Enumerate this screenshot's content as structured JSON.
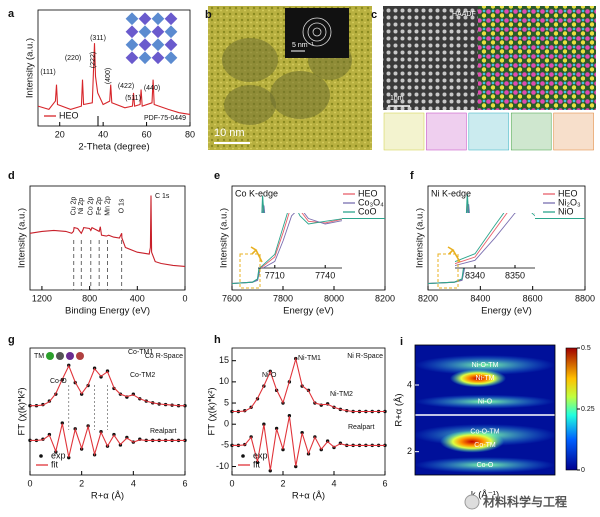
{
  "chart_data": [
    {
      "type": "line",
      "label": "a",
      "xlabel": "2-Theta (degree)",
      "ylabel": "Intensity (a.u.)",
      "xlim": [
        10,
        80
      ],
      "xticks": [
        20,
        40,
        60,
        80
      ],
      "ylim": [
        30,
        100
      ],
      "legend": "lower left",
      "reference": "PDF-75-0449",
      "peaks": [
        "(111)",
        "(220)",
        "(311)",
        "(222)",
        "(400)",
        "(422)",
        "(511)",
        "(440)"
      ],
      "x": [
        10,
        15,
        18,
        18.5,
        19,
        25,
        30,
        30.5,
        31,
        35,
        35.5,
        36,
        36.5,
        37.5,
        40,
        43,
        43.5,
        44,
        50,
        53.5,
        54,
        54.5,
        57,
        57.5,
        58,
        62.5,
        63,
        63.5,
        70,
        75,
        80
      ],
      "series": [
        {
          "name": "HEO",
          "color": "#d7262b",
          "values": [
            42,
            40,
            45,
            55,
            43,
            40,
            42,
            58,
            43,
            44,
            62,
            80,
            60,
            50,
            43,
            45,
            55,
            44,
            41,
            42,
            50,
            42,
            43,
            52,
            42,
            44,
            58,
            43,
            40,
            38,
            37
          ]
        }
      ]
    },
    {
      "type": "image",
      "label": "b",
      "scalebar": "10 nm",
      "inset_scalebar": "5 nm⁻¹"
    },
    {
      "type": "image",
      "label": "c",
      "title": "HAADF",
      "scalebar": "1nm"
    },
    {
      "type": "line",
      "label": "d",
      "xlabel": "Binding Energy (eV)",
      "ylabel": "Intensity (a.u.)",
      "xlim": [
        1300,
        0
      ],
      "xticks": [
        1200,
        800,
        400,
        0
      ],
      "ylim": [
        0,
        110
      ],
      "peaks": [
        "Cu 2p",
        "Ni 2p",
        "Co 2p",
        "Fe 2p",
        "Mn 2p",
        "O 1s",
        "C 1s"
      ],
      "x": [
        1300,
        1200,
        1100,
        1000,
        950,
        935,
        930,
        900,
        870,
        855,
        850,
        800,
        790,
        780,
        750,
        720,
        710,
        700,
        660,
        640,
        600,
        550,
        531,
        529,
        500,
        400,
        300,
        290,
        285,
        280,
        250,
        200,
        100,
        0
      ],
      "series": [
        {
          "color": "#c8202a",
          "values": [
            60,
            62,
            63,
            62,
            60,
            62,
            66,
            65,
            60,
            64,
            66,
            65,
            63,
            66,
            64,
            62,
            67,
            58,
            57,
            58,
            56,
            55,
            60,
            55,
            45,
            40,
            38,
            45,
            100,
            40,
            30,
            28,
            26,
            25
          ]
        }
      ]
    },
    {
      "type": "line",
      "label": "e",
      "edge": "Co K-edge",
      "xlabel": "Energy (eV)",
      "ylabel": "Intensity (a.u.)",
      "xlim": [
        7600,
        8200
      ],
      "xticks": [
        7600,
        7800,
        8000,
        8200
      ],
      "ylim": [
        -0.1,
        1.5
      ],
      "legend": "upper right",
      "inset": {
        "xlim": [
          7700,
          7750
        ],
        "ylim": [
          0.1,
          1.1
        ],
        "xticks": [
          7710,
          7740
        ]
      },
      "x": [
        7600,
        7680,
        7700,
        7710,
        7715,
        7720,
        7725,
        7730,
        7740,
        7760,
        7780,
        7800,
        7850,
        7900,
        8000,
        8100,
        8200
      ],
      "series": [
        {
          "name": "HEO",
          "color": "#e8606b",
          "values": [
            0,
            0.02,
            0.06,
            0.3,
            0.75,
            1.25,
            1.15,
            0.95,
            0.92,
            1.05,
            1.0,
            0.97,
            1.02,
            1.0,
            1.0,
            1.0,
            1.0
          ]
        },
        {
          "name": "Co₃O₄",
          "color": "#7a6fb0",
          "values": [
            0,
            0.02,
            0.05,
            0.22,
            0.6,
            1.05,
            1.2,
            1.0,
            0.9,
            1.02,
            1.03,
            0.98,
            1.01,
            1.0,
            1.0,
            1.0,
            1.0
          ]
        },
        {
          "name": "CoO",
          "color": "#2ca58d",
          "values": [
            0,
            0.02,
            0.07,
            0.35,
            0.85,
            1.35,
            1.05,
            0.9,
            0.95,
            1.04,
            0.98,
            0.98,
            1.0,
            1.0,
            1.0,
            1.0,
            1.0
          ]
        }
      ]
    },
    {
      "type": "line",
      "label": "f",
      "edge": "Ni K-edge",
      "xlabel": "Energy (eV)",
      "ylabel": "Intensity (a.u.)",
      "xlim": [
        8200,
        8800
      ],
      "xticks": [
        8200,
        8400,
        8600,
        8800
      ],
      "ylim": [
        -0.1,
        1.5
      ],
      "legend": "upper right",
      "inset": {
        "xlim": [
          8335,
          8355
        ],
        "ylim": [
          0.1,
          1.1
        ],
        "xticks": [
          8340,
          8350
        ]
      },
      "x": [
        8200,
        8300,
        8330,
        8340,
        8345,
        8350,
        8355,
        8360,
        8370,
        8390,
        8420,
        8450,
        8500,
        8550,
        8650,
        8750,
        8800
      ],
      "series": [
        {
          "name": "HEO",
          "color": "#e8606b",
          "values": [
            0,
            0.02,
            0.06,
            0.3,
            0.8,
            1.3,
            1.1,
            0.95,
            0.92,
            1.05,
            1.0,
            0.97,
            1.02,
            1.0,
            1.0,
            1.0,
            1.0
          ]
        },
        {
          "name": "Ni₂O₃",
          "color": "#7a6fb0",
          "values": [
            0,
            0.02,
            0.05,
            0.24,
            0.65,
            1.1,
            1.22,
            1.0,
            0.9,
            1.02,
            1.03,
            0.98,
            1.01,
            1.0,
            1.0,
            1.0,
            1.0
          ]
        },
        {
          "name": "NiO",
          "color": "#2ca58d",
          "values": [
            0,
            0.02,
            0.07,
            0.36,
            0.88,
            1.38,
            1.05,
            0.9,
            0.95,
            1.04,
            0.98,
            0.98,
            1.0,
            1.0,
            1.0,
            1.0,
            1.0
          ]
        }
      ]
    },
    {
      "type": "line",
      "label": "g",
      "title": "Co R-Space",
      "tm": "TM",
      "part": "Realpart",
      "xlabel": "R+α (Å)",
      "ylabel": "FT (χ(k)*k²)",
      "xlim": [
        0,
        6
      ],
      "xticks": [
        0,
        2,
        4,
        6
      ],
      "ylim": [
        -6,
        16
      ],
      "legend": "lower left",
      "peaks": [
        "Co-O",
        "Co-TM1",
        "Co-TM2"
      ],
      "x": [
        0,
        0.25,
        0.5,
        0.75,
        1,
        1.25,
        1.5,
        1.75,
        2,
        2.25,
        2.5,
        2.75,
        3,
        3.25,
        3.5,
        3.75,
        4,
        4.25,
        4.5,
        4.75,
        5,
        5.25,
        5.5,
        5.75,
        6
      ],
      "series": [
        {
          "name": "exp",
          "color": "#111111",
          "marker": "dot",
          "values": [
            6,
            6,
            6.2,
            6.8,
            8,
            10.5,
            13,
            10,
            8,
            9.5,
            12.5,
            11,
            12,
            9,
            8,
            7.5,
            8,
            7.2,
            6.8,
            6.5,
            6.3,
            6.2,
            6.1,
            6,
            6
          ],
          "realpart": [
            0,
            0,
            0.2,
            1,
            -2,
            3,
            -3,
            2,
            -1.5,
            2.5,
            -2.5,
            1.5,
            -1,
            1,
            -0.8,
            0.5,
            -0.3,
            0.2,
            0,
            0,
            0,
            0,
            0,
            0,
            0
          ]
        },
        {
          "name": "fit",
          "color": "#e0343a",
          "values": [
            6,
            6,
            6.1,
            6.7,
            8.1,
            10.6,
            12.9,
            10.1,
            8.1,
            9.6,
            12.4,
            11.1,
            11.9,
            9.1,
            8,
            7.6,
            7.9,
            7.2,
            6.8,
            6.5,
            6.3,
            6.2,
            6.1,
            6,
            6
          ],
          "realpart": [
            0,
            0,
            0.1,
            0.9,
            -1.9,
            2.9,
            -2.9,
            1.9,
            -1.4,
            2.4,
            -2.4,
            1.4,
            -1,
            0.9,
            -0.7,
            0.4,
            -0.3,
            0.1,
            0,
            0,
            0,
            0,
            0,
            0,
            0
          ]
        }
      ]
    },
    {
      "type": "line",
      "label": "h",
      "title": "Ni R-Space",
      "part": "Realpart",
      "xlabel": "R+α (Å)",
      "ylabel": "FT (χ(k)*k²)",
      "xlim": [
        0,
        6
      ],
      "xticks": [
        0,
        2,
        4,
        6
      ],
      "ylim": [
        -12,
        18
      ],
      "yticks": [
        -10,
        -5,
        0,
        5,
        10,
        15
      ],
      "legend": "lower left",
      "peaks": [
        "Ni-O",
        "Ni-TM1",
        "Ni-TM2"
      ],
      "x": [
        0,
        0.25,
        0.5,
        0.75,
        1,
        1.25,
        1.5,
        1.75,
        2,
        2.25,
        2.5,
        2.75,
        3,
        3.25,
        3.5,
        3.75,
        4,
        4.25,
        4.5,
        4.75,
        5,
        5.25,
        5.5,
        5.75,
        6
      ],
      "series": [
        {
          "name": "exp",
          "color": "#111111",
          "marker": "dot",
          "values": [
            3,
            3,
            3.2,
            4,
            6,
            9,
            12.5,
            8,
            5,
            10,
            15.5,
            9,
            8,
            5,
            4.5,
            4.8,
            4,
            3.5,
            3.2,
            3,
            3,
            3,
            3,
            3,
            3
          ],
          "realpart": [
            -5,
            -5,
            -4.8,
            -3,
            -9,
            0,
            -11,
            -1,
            -6,
            2,
            -10,
            -2,
            -7,
            -3,
            -6,
            -4,
            -5.5,
            -4.5,
            -5,
            -5,
            -5,
            -5,
            -5,
            -5,
            -5
          ]
        },
        {
          "name": "fit",
          "color": "#e0343a",
          "values": [
            3,
            3,
            3.1,
            3.9,
            6.1,
            9.1,
            12.4,
            8.1,
            5.1,
            10.1,
            15.4,
            9.1,
            7.9,
            5,
            4.6,
            4.7,
            4,
            3.5,
            3.2,
            3,
            3,
            3,
            3,
            3,
            3
          ],
          "realpart": [
            -5,
            -5,
            -4.9,
            -3.1,
            -8.9,
            -0.1,
            -10.9,
            -1.1,
            -5.9,
            1.9,
            -9.9,
            -2.1,
            -6.9,
            -3.1,
            -5.9,
            -4.1,
            -5.4,
            -4.6,
            -5,
            -5,
            -5,
            -5,
            -5,
            -5,
            -5
          ]
        }
      ]
    },
    {
      "type": "wavelet",
      "label": "i",
      "ylabel": "R+α (Å)",
      "xlabel": "k (Å⁻¹)",
      "ylim": [
        1.3,
        5.2
      ],
      "yticks": [
        2,
        4
      ],
      "clim": [
        0,
        0.5
      ],
      "cticks": [
        0,
        0.25,
        0.5
      ],
      "peaks": [
        "Ni-O-TM",
        "Ni-TM",
        "Ni-O",
        "Co-O-TM",
        "Co-TM",
        "Co-O"
      ]
    }
  ],
  "watermark": "材料科学与工程"
}
